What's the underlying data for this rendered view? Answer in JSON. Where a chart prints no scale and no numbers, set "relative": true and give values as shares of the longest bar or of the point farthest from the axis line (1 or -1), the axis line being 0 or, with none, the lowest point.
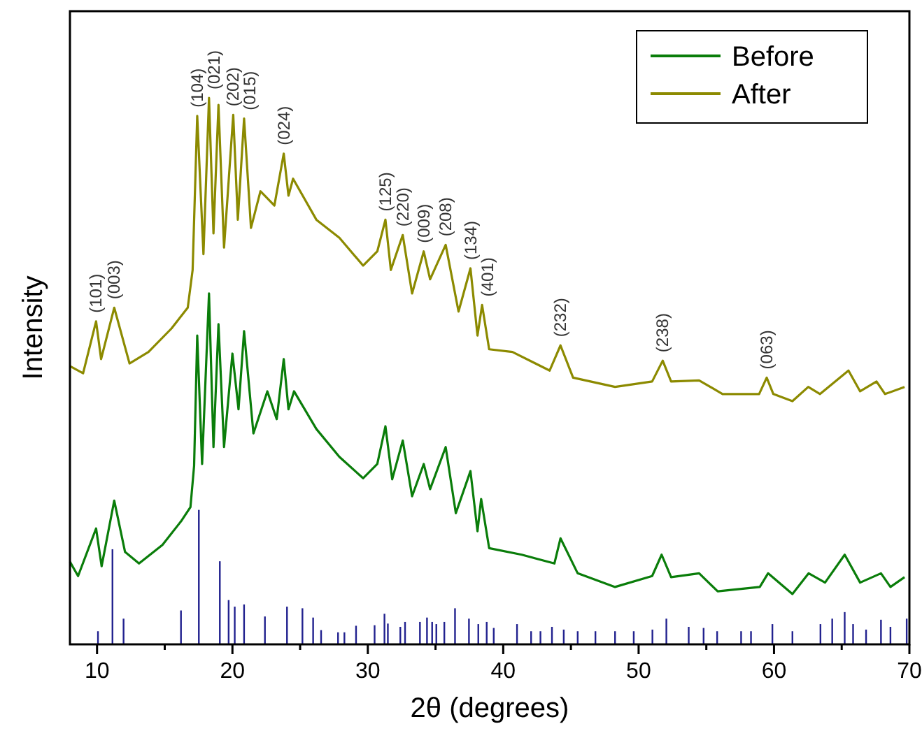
{
  "chart_data": {
    "type": "line",
    "relative": true,
    "xlabel": "2θ (degrees)",
    "ylabel": "Intensity",
    "xlim": [
      8,
      70
    ],
    "xticks": [
      10,
      {
        "value": 15,
        "label": null
      },
      20,
      {
        "value": 25,
        "label": null
      },
      30,
      {
        "value": 35,
        "label": null
      },
      40,
      {
        "value": 45,
        "label": null
      },
      50,
      {
        "value": 55,
        "label": null
      },
      60,
      {
        "value": 65,
        "label": null
      },
      70
    ],
    "tick_labels": "x",
    "legend": "top right",
    "series": [
      {
        "name": "Before",
        "color": "#0a7d0a",
        "x": [
          8,
          8.6,
          9.93,
          10.34,
          11.27,
          12.07,
          13.1,
          14.83,
          16.2,
          16.9,
          17.17,
          17.4,
          17.76,
          18.27,
          18.6,
          18.97,
          19.38,
          20.0,
          20.45,
          20.86,
          21.55,
          22.58,
          23.27,
          23.79,
          24.14,
          24.55,
          26.2,
          27.9,
          29.65,
          30.7,
          31.3,
          31.8,
          32.58,
          33.27,
          34.13,
          34.6,
          35.75,
          36.5,
          37.58,
          38.1,
          38.37,
          38.96,
          41.37,
          43.78,
          44.23,
          45.5,
          48.26,
          51.0,
          51.7,
          52.4,
          54.47,
          55.84,
          58.95,
          59.56,
          61.36,
          62.56,
          63.77,
          65.22,
          66.36,
          67.9,
          68.6,
          69.64
        ],
        "values": [
          0.151,
          0.125,
          0.212,
          0.143,
          0.263,
          0.169,
          0.148,
          0.182,
          0.225,
          0.251,
          0.327,
          0.565,
          0.33,
          0.642,
          0.361,
          0.586,
          0.361,
          0.532,
          0.43,
          0.573,
          0.386,
          0.463,
          0.412,
          0.522,
          0.43,
          0.463,
          0.394,
          0.343,
          0.304,
          0.33,
          0.399,
          0.302,
          0.373,
          0.271,
          0.33,
          0.284,
          0.361,
          0.24,
          0.317,
          0.207,
          0.266,
          0.176,
          0.164,
          0.148,
          0.194,
          0.13,
          0.105,
          0.125,
          0.164,
          0.123,
          0.13,
          0.097,
          0.105,
          0.13,
          0.092,
          0.13,
          0.113,
          0.164,
          0.113,
          0.13,
          0.105,
          0.123
        ]
      },
      {
        "name": "After",
        "color": "#8c8a00",
        "x": [
          8,
          8.97,
          9.93,
          10.3,
          11.27,
          12.4,
          13.8,
          15.5,
          16.7,
          17.06,
          17.4,
          17.86,
          18.27,
          18.6,
          18.97,
          19.38,
          20.06,
          20.4,
          20.86,
          21.37,
          22.07,
          23.1,
          23.79,
          24.14,
          24.48,
          26.2,
          27.9,
          29.65,
          30.7,
          31.3,
          31.7,
          32.58,
          33.27,
          34.13,
          34.6,
          35.75,
          36.7,
          37.58,
          38.1,
          38.44,
          38.96,
          40.68,
          43.43,
          44.23,
          45.16,
          48.26,
          51.0,
          51.78,
          52.4,
          54.47,
          56.2,
          58.9,
          59.46,
          59.95,
          61.36,
          62.53,
          63.4,
          65.5,
          66.36,
          67.57,
          68.2,
          69.64
        ],
        "values": [
          0.509,
          0.496,
          0.591,
          0.522,
          0.616,
          0.514,
          0.535,
          0.578,
          0.616,
          0.685,
          0.967,
          0.714,
          1.0,
          0.752,
          0.987,
          0.726,
          0.969,
          0.777,
          0.962,
          0.762,
          0.829,
          0.803,
          0.898,
          0.821,
          0.852,
          0.777,
          0.744,
          0.693,
          0.719,
          0.777,
          0.685,
          0.749,
          0.642,
          0.719,
          0.668,
          0.731,
          0.609,
          0.688,
          0.565,
          0.621,
          0.54,
          0.535,
          0.501,
          0.547,
          0.488,
          0.471,
          0.481,
          0.519,
          0.481,
          0.483,
          0.458,
          0.458,
          0.488,
          0.458,
          0.445,
          0.471,
          0.458,
          0.501,
          0.463,
          0.481,
          0.458,
          0.471
        ]
      },
      {
        "color": "#22228f",
        "type": "bar",
        "x": [
          10.07,
          11.14,
          11.96,
          16.2,
          17.52,
          19.07,
          19.72,
          20.17,
          20.86,
          22.4,
          24.03,
          25.17,
          25.96,
          26.55,
          27.8,
          28.27,
          29.13,
          30.5,
          31.23,
          31.48,
          32.4,
          32.75,
          33.85,
          34.37,
          34.75,
          35.06,
          35.65,
          36.44,
          37.47,
          38.16,
          38.78,
          39.3,
          41.02,
          42.06,
          42.75,
          43.6,
          44.47,
          45.5,
          46.81,
          48.26,
          49.64,
          51.02,
          52.05,
          53.7,
          54.8,
          55.8,
          57.57,
          58.3,
          59.88,
          61.36,
          63.43,
          64.3,
          65.22,
          65.84,
          66.8,
          67.9,
          68.6,
          69.8
        ],
        "values": [
          0.024,
          0.174,
          0.047,
          0.062,
          0.246,
          0.152,
          0.081,
          0.069,
          0.073,
          0.051,
          0.069,
          0.066,
          0.049,
          0.026,
          0.022,
          0.022,
          0.034,
          0.035,
          0.056,
          0.038,
          0.032,
          0.041,
          0.041,
          0.049,
          0.041,
          0.037,
          0.041,
          0.066,
          0.047,
          0.037,
          0.041,
          0.03,
          0.037,
          0.024,
          0.024,
          0.032,
          0.027,
          0.024,
          0.024,
          0.024,
          0.024,
          0.027,
          0.047,
          0.032,
          0.03,
          0.024,
          0.024,
          0.024,
          0.037,
          0.024,
          0.037,
          0.047,
          0.059,
          0.037,
          0.027,
          0.045,
          0.032,
          0.047
        ]
      }
    ],
    "annotations": [
      {
        "text": "(101)",
        "x": 9.93,
        "y": 0.591
      },
      {
        "text": "(003)",
        "x": 11.27,
        "y": 0.616
      },
      {
        "text": "(104)",
        "x": 17.4,
        "y": 0.967
      },
      {
        "text": "(021)",
        "x": 18.27,
        "y": 1.0
      },
      {
        "text": "(202)",
        "x": 20.06,
        "y": 0.969
      },
      {
        "text": "(015)",
        "x": 20.86,
        "y": 0.962
      },
      {
        "text": "(024)",
        "x": 23.79,
        "y": 0.898
      },
      {
        "text": "(125)",
        "x": 31.3,
        "y": 0.777
      },
      {
        "text": "(220)",
        "x": 32.58,
        "y": 0.749
      },
      {
        "text": "(009)",
        "x": 34.13,
        "y": 0.719
      },
      {
        "text": "(208)",
        "x": 35.75,
        "y": 0.731
      },
      {
        "text": "(134)",
        "x": 37.58,
        "y": 0.688
      },
      {
        "text": "(401)",
        "x": 38.44,
        "y": 0.621
      },
      {
        "text": "(232)",
        "x": 44.23,
        "y": 0.547
      },
      {
        "text": "(238)",
        "x": 51.78,
        "y": 0.519
      },
      {
        "text": "(063)",
        "x": 59.46,
        "y": 0.488
      }
    ]
  }
}
